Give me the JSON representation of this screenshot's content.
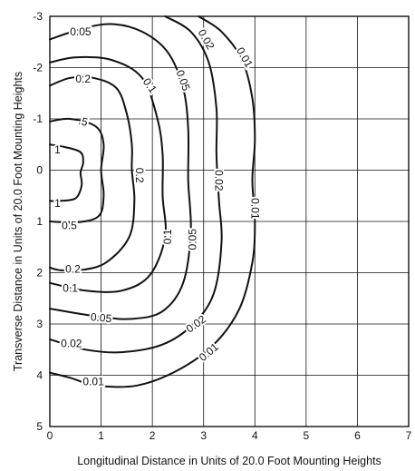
{
  "chart_data": {
    "type": "contour",
    "xlabel": "Longitudinal Distance in Units of 20.0 Foot Mounting Heights",
    "ylabel": "Transverse Distance in Units of 20.0 Foot Mounting Heights",
    "xlim": [
      0,
      7
    ],
    "ylim": [
      -3,
      5
    ],
    "y_inverted": true,
    "grid": true,
    "x_ticks": [
      "0",
      "1",
      "2",
      "3",
      "4",
      "5",
      "6",
      "7"
    ],
    "y_ticks": [
      "-3",
      "-2",
      "-1",
      "0",
      "1",
      "2",
      "3",
      "4",
      "5"
    ],
    "x_tick_values": [
      0,
      1,
      2,
      3,
      4,
      5,
      6,
      7
    ],
    "y_tick_values": [
      -3,
      -2,
      -1,
      0,
      1,
      2,
      3,
      4,
      5
    ],
    "series": [
      {
        "label": "1",
        "points": [
          [
            0,
            -0.5
          ],
          [
            0.3,
            -0.45
          ],
          [
            0.6,
            -0.35
          ],
          [
            0.65,
            -0.15
          ],
          [
            0.6,
            0.05
          ],
          [
            0.62,
            0.3
          ],
          [
            0.5,
            0.55
          ],
          [
            0.2,
            0.6
          ],
          [
            0,
            0.6
          ]
        ]
      },
      {
        "label": "0.5",
        "points": [
          [
            0,
            -0.95
          ],
          [
            0.4,
            -1.0
          ],
          [
            0.9,
            -0.85
          ],
          [
            1.05,
            -0.5
          ],
          [
            1.0,
            0.0
          ],
          [
            1.05,
            0.5
          ],
          [
            0.95,
            0.9
          ],
          [
            0.5,
            1.02
          ],
          [
            0,
            1.0
          ]
        ]
      },
      {
        "label": "0.2",
        "points": [
          [
            0,
            -1.65
          ],
          [
            0.4,
            -1.8
          ],
          [
            0.85,
            -1.8
          ],
          [
            1.3,
            -1.6
          ],
          [
            1.5,
            -1.1
          ],
          [
            1.6,
            -0.5
          ],
          [
            1.6,
            0.0
          ],
          [
            1.65,
            0.6
          ],
          [
            1.55,
            1.3
          ],
          [
            1.1,
            1.8
          ],
          [
            0.6,
            1.95
          ],
          [
            0.2,
            1.95
          ],
          [
            0,
            1.9
          ]
        ]
      },
      {
        "label": "0.1",
        "points": [
          [
            0,
            -2.1
          ],
          [
            0.5,
            -2.2
          ],
          [
            1.2,
            -2.15
          ],
          [
            1.8,
            -1.8
          ],
          [
            2.1,
            -1.0
          ],
          [
            2.2,
            -0.3
          ],
          [
            2.2,
            0.5
          ],
          [
            2.25,
            1.3
          ],
          [
            1.95,
            2.05
          ],
          [
            1.4,
            2.35
          ],
          [
            0.7,
            2.35
          ],
          [
            0,
            2.2
          ]
        ]
      },
      {
        "label": "0.05",
        "points": [
          [
            0,
            -2.55
          ],
          [
            0.6,
            -2.75
          ],
          [
            1.2,
            -2.85
          ],
          [
            1.8,
            -2.7
          ],
          [
            2.3,
            -2.3
          ],
          [
            2.6,
            -1.6
          ],
          [
            2.7,
            -0.8
          ],
          [
            2.7,
            0.2
          ],
          [
            2.75,
            1.2
          ],
          [
            2.6,
            2.2
          ],
          [
            2.2,
            2.75
          ],
          [
            1.6,
            2.9
          ],
          [
            0.9,
            2.85
          ],
          [
            0,
            2.7
          ]
        ]
      },
      {
        "label": "0.02",
        "points": [
          [
            2.25,
            -3.0
          ],
          [
            2.75,
            -2.7
          ],
          [
            3.1,
            -2.1
          ],
          [
            3.25,
            -1.2
          ],
          [
            3.25,
            -0.3
          ],
          [
            3.3,
            0.6
          ],
          [
            3.35,
            1.4
          ],
          [
            3.2,
            2.4
          ],
          [
            2.8,
            3.0
          ],
          [
            2.2,
            3.4
          ],
          [
            1.4,
            3.55
          ],
          [
            0.7,
            3.5
          ],
          [
            0,
            3.3
          ]
        ]
      },
      {
        "label": "0.01",
        "points": [
          [
            2.9,
            -3.0
          ],
          [
            3.35,
            -2.7
          ],
          [
            3.75,
            -2.15
          ],
          [
            3.95,
            -1.4
          ],
          [
            4.0,
            -0.6
          ],
          [
            3.95,
            0.2
          ],
          [
            4.0,
            1.0
          ],
          [
            3.95,
            1.8
          ],
          [
            3.7,
            2.7
          ],
          [
            3.2,
            3.4
          ],
          [
            2.5,
            3.9
          ],
          [
            1.7,
            4.2
          ],
          [
            0.9,
            4.2
          ],
          [
            0.4,
            4.05
          ],
          [
            0,
            3.95
          ]
        ]
      }
    ],
    "labels": [
      {
        "text": "1",
        "x": 0.15,
        "y": -0.4,
        "angle": 0
      },
      {
        "text": "1",
        "x": 0.15,
        "y": 0.65,
        "angle": 0
      },
      {
        "text": ".5",
        "x": 0.65,
        "y": -0.95,
        "angle": 15
      },
      {
        "text": "0.5",
        "x": 0.38,
        "y": 1.08,
        "angle": 0
      },
      {
        "text": "0.2",
        "x": 0.65,
        "y": -1.78,
        "angle": 0
      },
      {
        "text": "0.2",
        "x": 1.75,
        "y": 0.1,
        "angle": 90
      },
      {
        "text": "0.2",
        "x": 0.45,
        "y": 1.93,
        "angle": 0
      },
      {
        "text": "0.05",
        "x": 0.6,
        "y": -2.7,
        "angle": 0
      },
      {
        "text": "0.1",
        "x": 1.95,
        "y": -1.65,
        "angle": 55
      },
      {
        "text": "0.1",
        "x": 2.3,
        "y": 1.3,
        "angle": -90
      },
      {
        "text": "0.1",
        "x": 0.4,
        "y": 2.3,
        "angle": 0
      },
      {
        "text": "0.05",
        "x": 2.6,
        "y": -1.75,
        "angle": 70
      },
      {
        "text": "0.05",
        "x": 2.78,
        "y": 1.35,
        "angle": -90
      },
      {
        "text": "0.05",
        "x": 1.0,
        "y": 2.88,
        "angle": 5
      },
      {
        "text": "0.02",
        "x": 3.05,
        "y": -2.55,
        "angle": 60
      },
      {
        "text": "0.02",
        "x": 3.3,
        "y": 0.2,
        "angle": 90
      },
      {
        "text": "0.02",
        "x": 2.85,
        "y": 3.0,
        "angle": -35
      },
      {
        "text": "0.02",
        "x": 0.42,
        "y": 3.38,
        "angle": 0
      },
      {
        "text": "0.01",
        "x": 3.8,
        "y": -2.2,
        "angle": 60
      },
      {
        "text": "0.01",
        "x": 4.0,
        "y": 0.75,
        "angle": 90
      },
      {
        "text": "0.01",
        "x": 3.1,
        "y": 3.55,
        "angle": -40
      },
      {
        "text": "0.01",
        "x": 0.85,
        "y": 4.12,
        "angle": 0
      }
    ]
  }
}
